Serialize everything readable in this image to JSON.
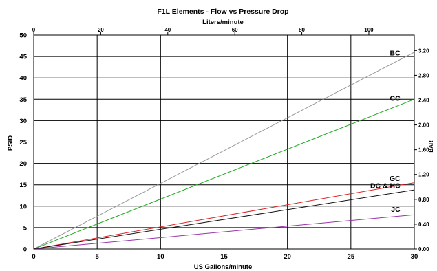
{
  "chart_data": {
    "type": "line",
    "title": "F1L Elements - Flow vs Pressure Drop",
    "x_top_label": "Liters/minute",
    "xlabel": "US Gallons/minute",
    "ylabel": "PSID",
    "y_right_label": "BAR",
    "xlim": [
      0,
      30
    ],
    "ylim": [
      0,
      50
    ],
    "x_top_lim": [
      0,
      113.56
    ],
    "y_right_lim": [
      0,
      3.4474
    ],
    "x_ticks": [
      "0",
      "5",
      "10",
      "15",
      "20",
      "25",
      "30"
    ],
    "y_ticks": [
      "0",
      "5",
      "10",
      "15",
      "20",
      "25",
      "30",
      "35",
      "40",
      "45",
      "50"
    ],
    "x_top_ticks": [
      "0",
      "20",
      "40",
      "60",
      "80",
      "100"
    ],
    "y_right_ticks": [
      "0.00",
      "0.40",
      "0.80",
      "1.20",
      "1.60",
      "2.00",
      "2.40",
      "2.80",
      "3.20"
    ],
    "grid": true,
    "series": [
      {
        "name": "BC",
        "color": "#999999",
        "x": [
          0,
          30
        ],
        "y": [
          0,
          46.0
        ]
      },
      {
        "name": "CC",
        "color": "#22aa22",
        "x": [
          0,
          30
        ],
        "y": [
          0,
          35.0
        ]
      },
      {
        "name": "GC",
        "color": "#dd2222",
        "x": [
          0,
          30
        ],
        "y": [
          0,
          15.5
        ]
      },
      {
        "name": "DC & HC",
        "color": "#111111",
        "x": [
          0,
          30
        ],
        "y": [
          0,
          13.8
        ]
      },
      {
        "name": "JC",
        "color": "#9933aa",
        "x": [
          0,
          30
        ],
        "y": [
          0,
          8.0
        ]
      }
    ]
  }
}
